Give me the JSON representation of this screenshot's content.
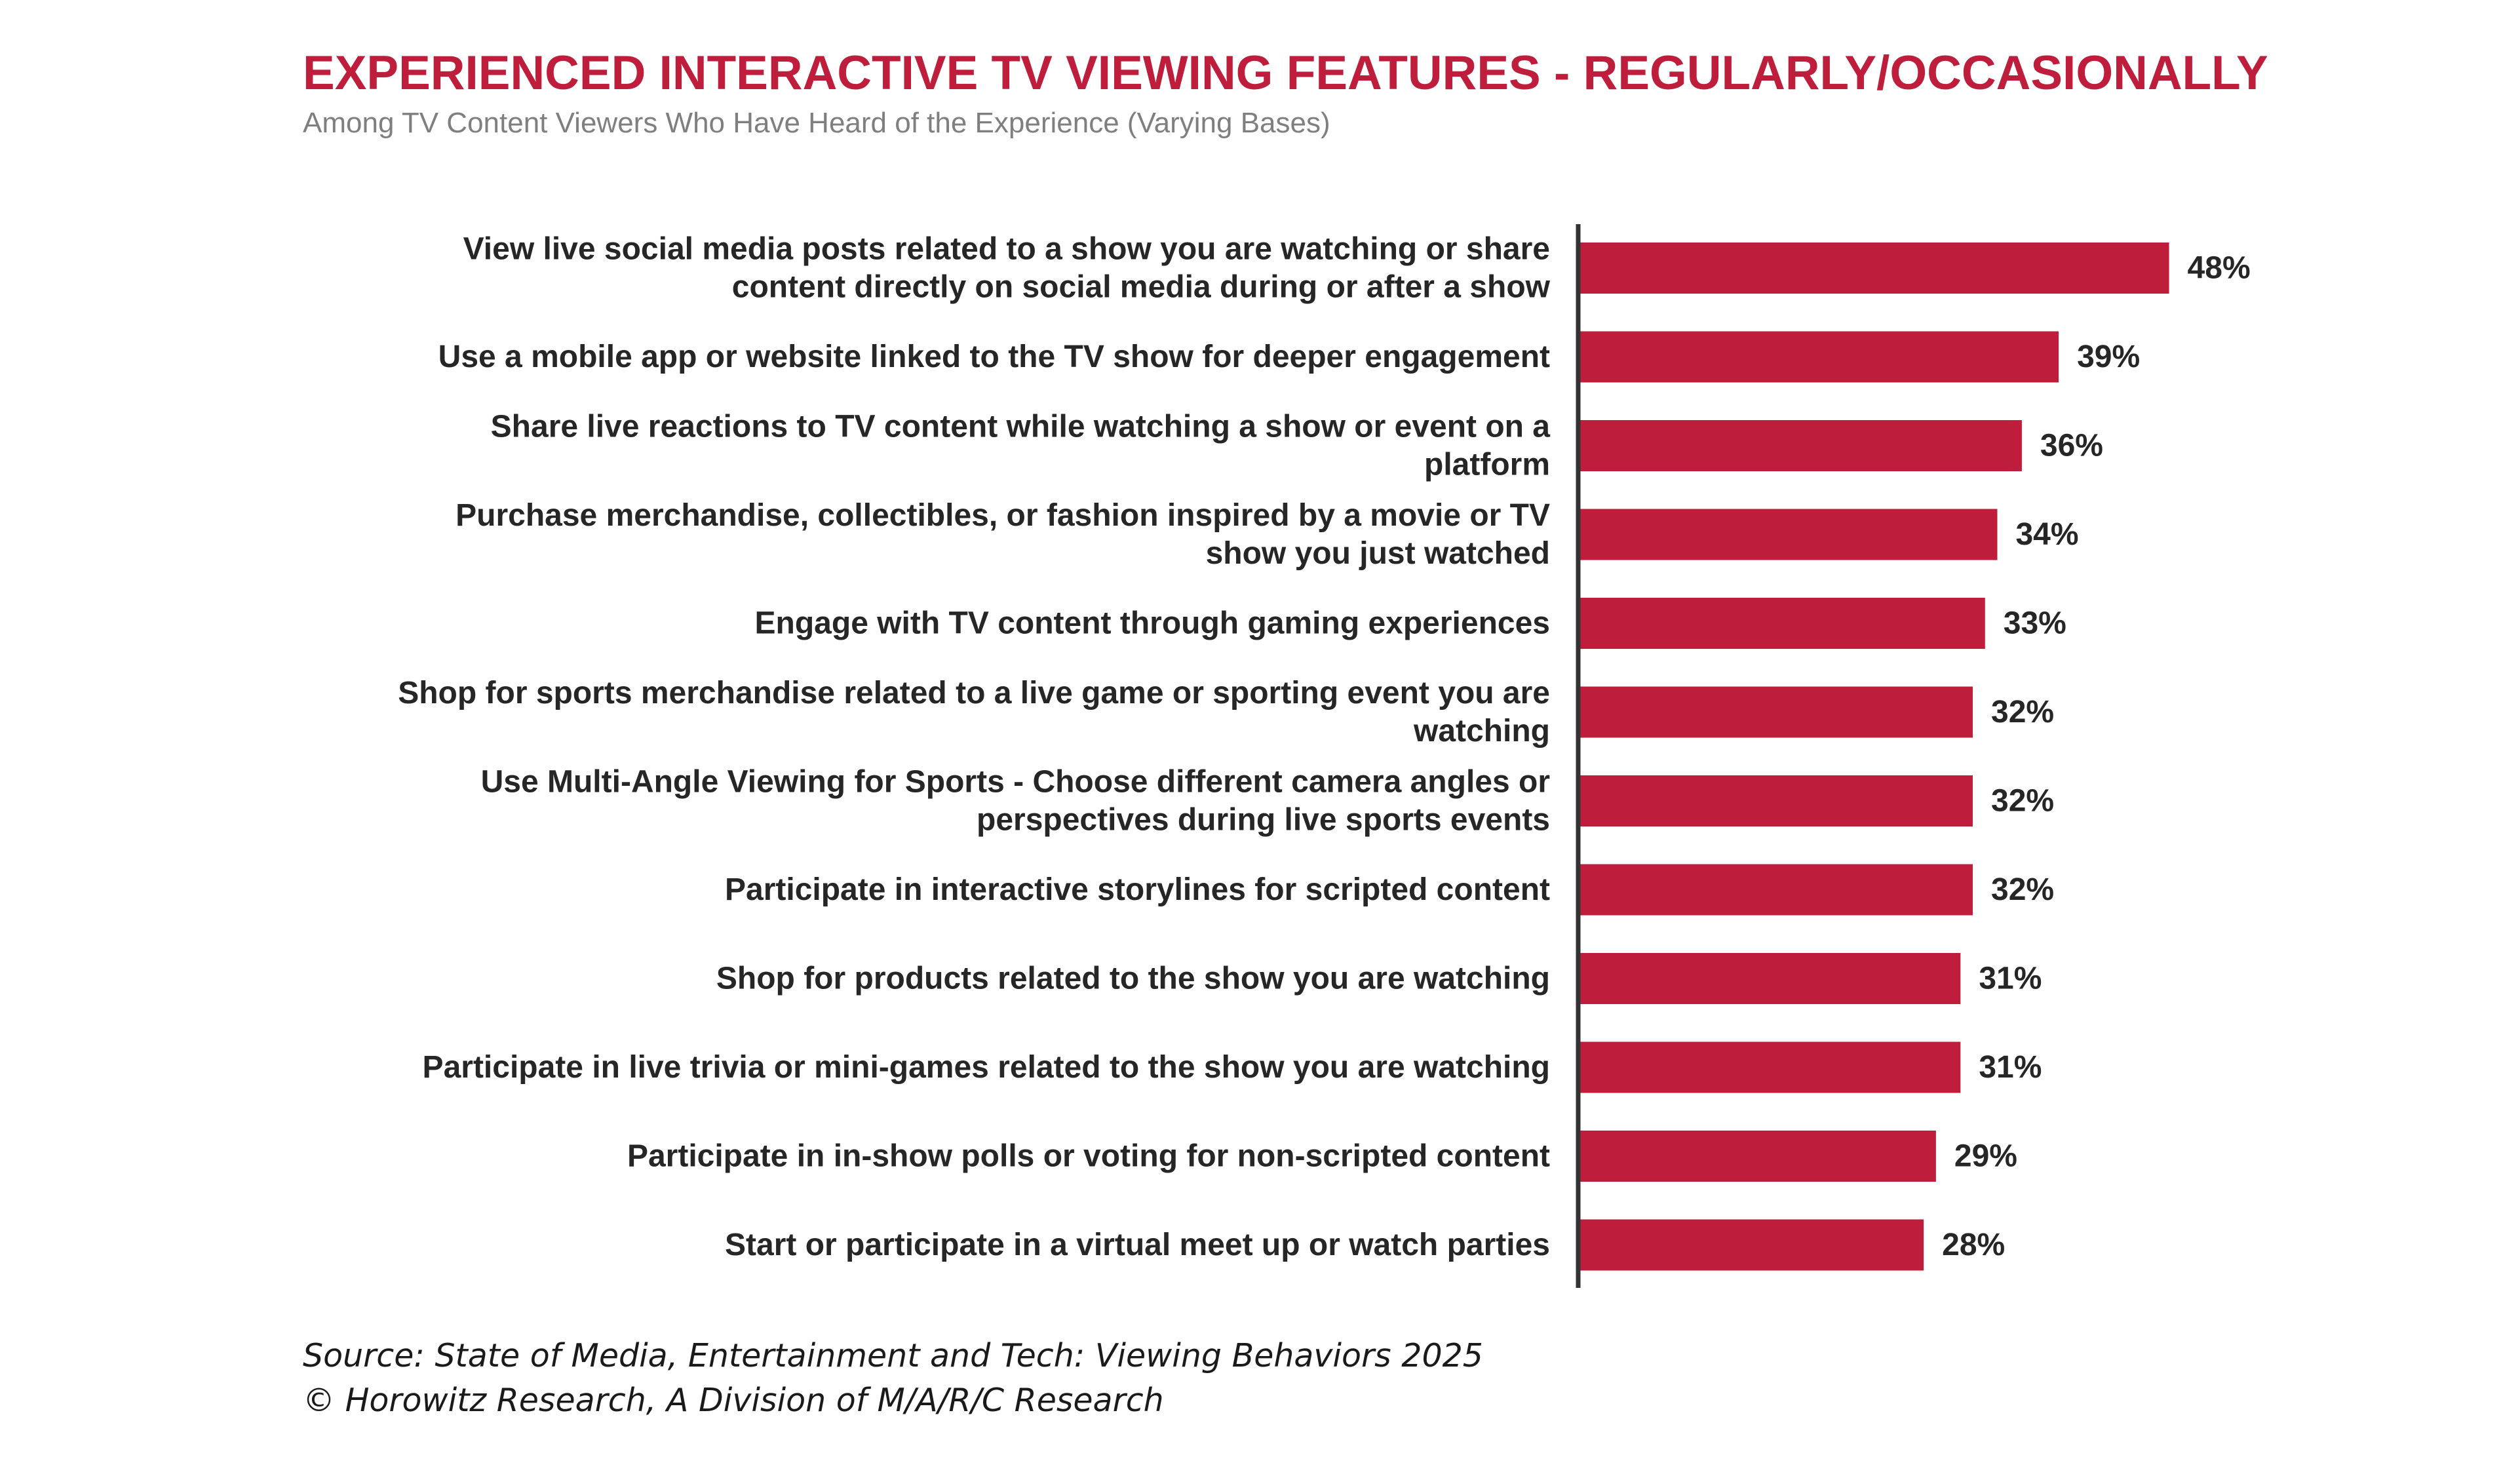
{
  "title": "EXPERIENCED INTERACTIVE TV VIEWING FEATURES - REGULARLY/OCCASIONALLY",
  "subtitle": "Among TV Content Viewers Who Have Heard of the Experience (Varying Bases)",
  "footer": {
    "source": "Source: State of Media, Entertainment and Tech: Viewing Behaviors 2025",
    "copyright": "© Horowitz Research, A Division of M/A/R/C Research"
  },
  "colors": {
    "bar": "#BE1E3C",
    "title": "#BE1E3C",
    "axis": "#333333"
  },
  "chart_data": {
    "type": "bar",
    "orientation": "horizontal",
    "title": "EXPERIENCED INTERACTIVE TV VIEWING FEATURES - REGULARLY/OCCASIONALLY",
    "subtitle": "Among TV Content Viewers Who Have Heard of the Experience (Varying Bases)",
    "xlim": [
      0,
      100
    ],
    "grid": false,
    "legend": "none",
    "categories": [
      [
        "View live social media posts related to a show you are watching or share",
        "content directly on social media during or after a show"
      ],
      [
        "Use a mobile app or website linked to the TV show for deeper engagement"
      ],
      [
        "Share live reactions to TV content while watching a show or event on a",
        "platform"
      ],
      [
        "Purchase merchandise, collectibles, or fashion inspired by a movie or TV",
        "show you just watched"
      ],
      [
        "Engage with TV content through gaming experiences"
      ],
      [
        "Shop for sports merchandise related to a live game or sporting event you are",
        "watching"
      ],
      [
        "Use Multi-Angle Viewing for Sports - Choose different camera angles or",
        "perspectives during live sports events"
      ],
      [
        "Participate in interactive storylines for scripted content"
      ],
      [
        "Shop for products related to the show you are watching"
      ],
      [
        "Participate in live trivia or mini-games related to the show you are watching"
      ],
      [
        "Participate in in-show polls or voting for non-scripted content"
      ],
      [
        "Start or participate in a virtual meet up or watch parties"
      ]
    ],
    "values": [
      48,
      39,
      36,
      34,
      33,
      32,
      32,
      32,
      31,
      31,
      29,
      28
    ],
    "value_labels": [
      "48%",
      "39%",
      "36%",
      "34%",
      "33%",
      "32%",
      "32%",
      "32%",
      "31%",
      "31%",
      "29%",
      "28%"
    ]
  }
}
